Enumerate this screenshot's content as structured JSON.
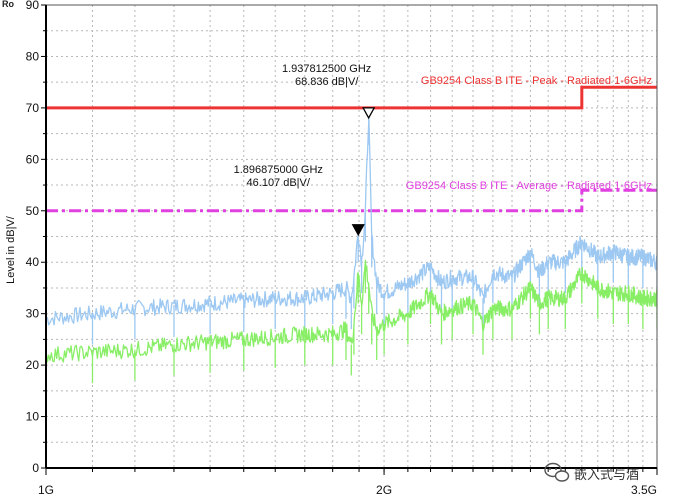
{
  "chart_data": {
    "type": "line",
    "title": "",
    "ylabel": "Level in dB|V/",
    "xlabel": "",
    "x_scale": "log",
    "xlim_hz": [
      1000000000,
      3500000000
    ],
    "ylim": [
      0,
      90
    ],
    "grid": true,
    "x_ticks": [
      {
        "value": 1000000000,
        "label": "1G"
      },
      {
        "value": 2000000000,
        "label": "2G"
      },
      {
        "value": 3500000000,
        "label": "3.5G"
      }
    ],
    "y_ticks": [
      0,
      10,
      20,
      30,
      40,
      50,
      60,
      70,
      80,
      90
    ],
    "limit_lines": [
      {
        "name": "GB9254 Class B ITE - Peak - Radiated 1-6GHz",
        "color": "#ee3333",
        "style": "solid",
        "segments": [
          {
            "x": [
              1000000000,
              3000000000
            ],
            "y": 70
          },
          {
            "x": [
              3000000000,
              3500000000
            ],
            "y": 74
          }
        ]
      },
      {
        "name": "GB9254 Class B ITE - Average - Radiated 1-6GHz",
        "color": "#e040e0",
        "style": "dashdot",
        "segments": [
          {
            "x": [
              1000000000,
              3000000000
            ],
            "y": 50
          },
          {
            "x": [
              3000000000,
              3500000000
            ],
            "y": 54
          }
        ]
      }
    ],
    "series": [
      {
        "color": "#9cc8f2",
        "x_ghz": [
          1.0,
          1.1,
          1.2,
          1.3,
          1.4,
          1.5,
          1.6,
          1.7,
          1.8,
          1.85,
          1.87,
          1.88,
          1.896875,
          1.91,
          1.925,
          1.937813,
          1.95,
          1.97,
          2.0,
          2.1,
          2.2,
          2.25,
          2.3,
          2.4,
          2.45,
          2.5,
          2.6,
          2.7,
          2.75,
          2.8,
          2.9,
          3.0,
          3.1,
          3.2,
          3.3,
          3.4,
          3.5
        ],
        "y": [
          29,
          30,
          31,
          31.5,
          32,
          32.5,
          33,
          33,
          34,
          35,
          33,
          37,
          46.107,
          40,
          50,
          68.836,
          45,
          36,
          34,
          36,
          39,
          36,
          37,
          37,
          33,
          38,
          37,
          42,
          38,
          40,
          40,
          44,
          41,
          42,
          41,
          41,
          40
        ]
      },
      {
        "color": "#88ee66",
        "x_ghz": [
          1.0,
          1.1,
          1.2,
          1.3,
          1.4,
          1.5,
          1.6,
          1.7,
          1.8,
          1.85,
          1.87,
          1.88,
          1.896875,
          1.91,
          1.925,
          1.937813,
          1.95,
          1.97,
          2.0,
          2.1,
          2.2,
          2.25,
          2.3,
          2.4,
          2.45,
          2.5,
          2.6,
          2.7,
          2.75,
          2.8,
          2.9,
          3.0,
          3.1,
          3.2,
          3.3,
          3.4,
          3.5
        ],
        "y": [
          22,
          22.5,
          23,
          24,
          24.5,
          25,
          25.5,
          26,
          26,
          27,
          24,
          28,
          38,
          32,
          40,
          36,
          30,
          27,
          28,
          30,
          34,
          30,
          31,
          32,
          28,
          31,
          31,
          35,
          32,
          33,
          33,
          38,
          35,
          34,
          34,
          33,
          33
        ]
      }
    ],
    "markers": [
      {
        "freq_label": "1.937812500 GHz",
        "level_label": "68.836 dB|V/",
        "x_ghz": 1.937813,
        "y": 68.836,
        "filled": false
      },
      {
        "freq_label": "1.896875000 GHz",
        "level_label": "46.107 dB|V/",
        "x_ghz": 1.896875,
        "y": 46.107,
        "filled": true
      }
    ]
  },
  "corner_label": "Ro",
  "watermark": {
    "text": "嵌入式与酒",
    "icon": "wechat-icon"
  }
}
